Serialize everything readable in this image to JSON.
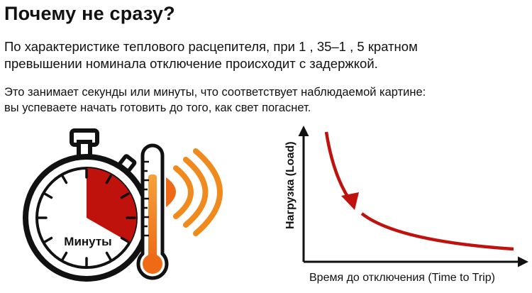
{
  "heading": "Почему не сразу?",
  "paragraph1": {
    "line1": "По характеристике теплового расцепителя, при 1 , 35–1 , 5 кратном",
    "line2": "превышении номинала отключение происходит с задержкой."
  },
  "paragraph2": {
    "line1": "Это занимает секунды или минуты, что соответствует наблюдаемой картине:",
    "line2": "вы успеваете начать готовить до того, как свет погаснет."
  },
  "stopwatch": {
    "label": "Минуты",
    "icon": "stopwatch-icon"
  },
  "thermometer": {
    "icon": "thermometer-icon"
  },
  "heat_waves": {
    "icon": "heat-waves-icon"
  },
  "colors": {
    "red": "#c0120c",
    "orange": "#f08a1c",
    "dark": "#111111"
  },
  "graph": {
    "y_label": "Нагрузка (Load)",
    "x_label": "Время до отключения (Time to Trip)"
  }
}
